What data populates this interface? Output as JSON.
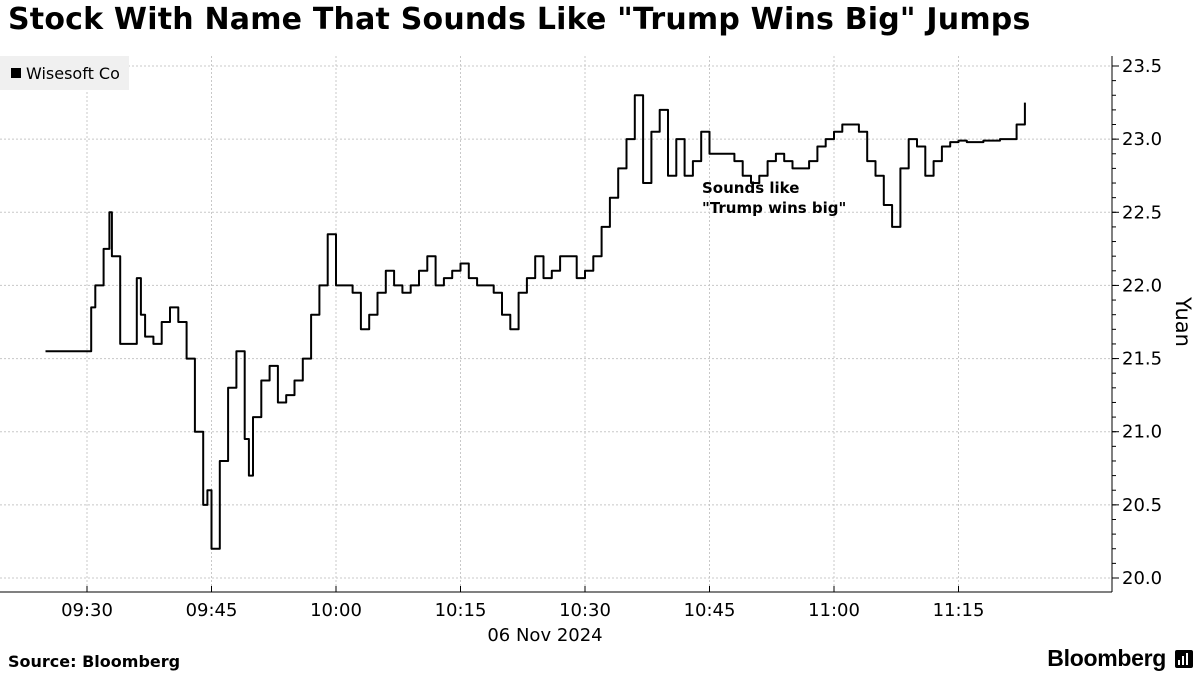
{
  "title": "Stock With Name That Sounds Like \"Trump Wins Big\" Jumps",
  "source": "Source: Bloomberg",
  "brand": "Bloomberg",
  "chart_data": {
    "type": "line",
    "ylabel": "Yuan",
    "xlabel": "06 Nov 2024",
    "ylim": [
      20.0,
      23.5
    ],
    "yticks": [
      "20.0",
      "20.5",
      "21.0",
      "21.5",
      "22.0",
      "22.5",
      "23.0",
      "23.5"
    ],
    "xticks": [
      "09:30",
      "09:45",
      "10:00",
      "10:15",
      "10:30",
      "10:45",
      "11:00",
      "11:15"
    ],
    "grid": true,
    "legend_position": "top-left",
    "annotation": [
      "Sounds like",
      "\"Trump wins big\""
    ],
    "series": [
      {
        "name": "Wisesoft Co",
        "color": "#000000",
        "points": [
          [
            "09:25",
            21.55
          ],
          [
            "09:30",
            21.55
          ],
          [
            "09:30.5",
            21.85
          ],
          [
            "09:31",
            22.0
          ],
          [
            "09:32",
            22.25
          ],
          [
            "09:32.7",
            22.5
          ],
          [
            "09:33",
            22.2
          ],
          [
            "09:34",
            21.6
          ],
          [
            "09:35",
            21.6
          ],
          [
            "09:36",
            22.05
          ],
          [
            "09:36.5",
            21.8
          ],
          [
            "09:37",
            21.65
          ],
          [
            "09:38",
            21.6
          ],
          [
            "09:39",
            21.75
          ],
          [
            "09:40",
            21.85
          ],
          [
            "09:41",
            21.75
          ],
          [
            "09:42",
            21.5
          ],
          [
            "09:43",
            21.0
          ],
          [
            "09:44",
            20.5
          ],
          [
            "09:44.5",
            20.6
          ],
          [
            "09:45",
            20.2
          ],
          [
            "09:46",
            20.8
          ],
          [
            "09:47",
            21.3
          ],
          [
            "09:48",
            21.55
          ],
          [
            "09:49",
            20.95
          ],
          [
            "09:49.5",
            20.7
          ],
          [
            "09:50",
            21.1
          ],
          [
            "09:51",
            21.35
          ],
          [
            "09:52",
            21.45
          ],
          [
            "09:53",
            21.2
          ],
          [
            "09:54",
            21.25
          ],
          [
            "09:55",
            21.35
          ],
          [
            "09:56",
            21.5
          ],
          [
            "09:57",
            21.8
          ],
          [
            "09:58",
            22.0
          ],
          [
            "09:59",
            22.35
          ],
          [
            "10:00",
            22.0
          ],
          [
            "10:01",
            22.0
          ],
          [
            "10:02",
            21.95
          ],
          [
            "10:03",
            21.7
          ],
          [
            "10:04",
            21.8
          ],
          [
            "10:05",
            21.95
          ],
          [
            "10:06",
            22.1
          ],
          [
            "10:07",
            22.0
          ],
          [
            "10:08",
            21.95
          ],
          [
            "10:09",
            22.0
          ],
          [
            "10:10",
            22.1
          ],
          [
            "10:11",
            22.2
          ],
          [
            "10:12",
            22.0
          ],
          [
            "10:13",
            22.05
          ],
          [
            "10:14",
            22.1
          ],
          [
            "10:15",
            22.15
          ],
          [
            "10:16",
            22.05
          ],
          [
            "10:17",
            22.0
          ],
          [
            "10:18",
            22.0
          ],
          [
            "10:19",
            21.95
          ],
          [
            "10:20",
            21.8
          ],
          [
            "10:21",
            21.7
          ],
          [
            "10:22",
            21.95
          ],
          [
            "10:23",
            22.05
          ],
          [
            "10:24",
            22.2
          ],
          [
            "10:25",
            22.05
          ],
          [
            "10:26",
            22.1
          ],
          [
            "10:27",
            22.2
          ],
          [
            "10:28",
            22.2
          ],
          [
            "10:29",
            22.05
          ],
          [
            "10:30",
            22.1
          ],
          [
            "10:31",
            22.2
          ],
          [
            "10:32",
            22.4
          ],
          [
            "10:33",
            22.6
          ],
          [
            "10:34",
            22.8
          ],
          [
            "10:35",
            23.0
          ],
          [
            "10:36",
            23.3
          ],
          [
            "10:37",
            22.7
          ],
          [
            "10:38",
            23.05
          ],
          [
            "10:39",
            23.2
          ],
          [
            "10:40",
            22.75
          ],
          [
            "10:41",
            23.0
          ],
          [
            "10:42",
            22.75
          ],
          [
            "10:43",
            22.85
          ],
          [
            "10:44",
            23.05
          ],
          [
            "10:45",
            22.9
          ],
          [
            "10:46",
            22.9
          ],
          [
            "10:47",
            22.9
          ],
          [
            "10:48",
            22.85
          ],
          [
            "10:49",
            22.75
          ],
          [
            "10:50",
            22.7
          ],
          [
            "10:51",
            22.75
          ],
          [
            "10:52",
            22.85
          ],
          [
            "10:53",
            22.9
          ],
          [
            "10:54",
            22.85
          ],
          [
            "10:55",
            22.8
          ],
          [
            "10:56",
            22.8
          ],
          [
            "10:57",
            22.85
          ],
          [
            "10:58",
            22.95
          ],
          [
            "10:59",
            23.0
          ],
          [
            "11:00",
            23.05
          ],
          [
            "11:01",
            23.1
          ],
          [
            "11:02",
            23.1
          ],
          [
            "11:03",
            23.05
          ],
          [
            "11:04",
            22.85
          ],
          [
            "11:05",
            22.75
          ],
          [
            "11:06",
            22.55
          ],
          [
            "11:07",
            22.4
          ],
          [
            "11:08",
            22.8
          ],
          [
            "11:09",
            23.0
          ],
          [
            "11:10",
            22.95
          ],
          [
            "11:11",
            22.75
          ],
          [
            "11:12",
            22.85
          ],
          [
            "11:13",
            22.95
          ],
          [
            "11:14",
            22.98
          ],
          [
            "11:15",
            22.99
          ],
          [
            "11:16",
            22.98
          ],
          [
            "11:17",
            22.98
          ],
          [
            "11:18",
            22.99
          ],
          [
            "11:19",
            22.99
          ],
          [
            "11:20",
            23.0
          ],
          [
            "11:21",
            23.0
          ],
          [
            "11:22",
            23.1
          ],
          [
            "11:23",
            23.25
          ]
        ]
      }
    ]
  }
}
